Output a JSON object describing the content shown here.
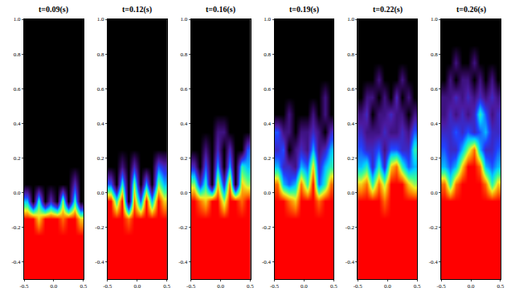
{
  "chart_data": [
    {
      "type": "heatmap",
      "title": "t=0.09(s)",
      "x": [
        -0.45,
        -0.35,
        -0.25,
        -0.15,
        -0.05,
        0.05,
        0.15,
        0.25,
        0.35,
        0.45
      ],
      "y": [
        -0.45,
        -0.35,
        -0.25,
        -0.15,
        -0.05,
        0.05,
        0.15,
        0.25,
        0.35,
        0.45,
        0.55,
        0.65,
        0.75,
        0.85,
        0.95
      ],
      "z": [
        [
          1,
          1,
          1,
          1,
          1,
          1,
          1,
          1,
          1,
          1
        ],
        [
          1,
          1,
          1,
          1,
          1,
          1,
          1,
          1,
          1,
          1
        ],
        [
          1,
          1,
          1,
          1,
          1,
          1,
          1,
          1,
          1,
          1
        ],
        [
          1,
          1,
          0.8,
          1,
          1,
          1,
          0.9,
          1,
          1,
          0.8
        ],
        [
          0.5,
          0,
          0.6,
          0,
          0.3,
          0,
          0.7,
          0,
          0.6,
          0
        ],
        [
          0,
          0,
          0,
          0,
          0,
          0,
          0,
          0,
          0.3,
          0
        ],
        [
          0,
          0,
          0,
          0,
          0,
          0,
          0,
          0,
          0,
          0
        ],
        [
          0,
          0,
          0,
          0,
          0,
          0,
          0,
          0,
          0,
          0
        ],
        [
          0,
          0,
          0,
          0,
          0,
          0,
          0,
          0,
          0,
          0
        ],
        [
          0,
          0,
          0,
          0,
          0,
          0,
          0,
          0,
          0,
          0
        ],
        [
          0,
          0,
          0,
          0,
          0,
          0,
          0,
          0,
          0,
          0
        ],
        [
          0,
          0,
          0,
          0,
          0,
          0,
          0,
          0,
          0,
          0
        ],
        [
          0,
          0,
          0,
          0,
          0,
          0,
          0,
          0,
          0,
          0
        ],
        [
          0,
          0,
          0,
          0,
          0,
          0,
          0,
          0,
          0,
          0
        ],
        [
          0,
          0,
          0,
          0,
          0,
          0,
          0,
          0,
          0,
          0
        ]
      ],
      "zlim": [
        0,
        1
      ],
      "xlim": [
        -0.5,
        0.5
      ],
      "ylim": [
        -0.5,
        1.0
      ],
      "xticks": [
        -0.5,
        {
          "value": 0,
          "label": "0.0"
        },
        0.5
      ],
      "yticks": [
        -0.4,
        -0.2,
        {
          "value": 0,
          "label": "0.0"
        },
        0.2,
        0.4,
        0.6,
        0.8,
        {
          "value": 1,
          "label": "1.0"
        }
      ]
    },
    {
      "type": "heatmap",
      "title": "t=0.12(s)",
      "x": [
        -0.45,
        -0.35,
        -0.25,
        -0.15,
        -0.05,
        0.05,
        0.15,
        0.25,
        0.35,
        0.45
      ],
      "y": [
        -0.45,
        -0.35,
        -0.25,
        -0.15,
        -0.05,
        0.05,
        0.15,
        0.25,
        0.35,
        0.45,
        0.55,
        0.65,
        0.75,
        0.85,
        0.95
      ],
      "z": [
        [
          1,
          1,
          1,
          1,
          1,
          1,
          1,
          1,
          1,
          1
        ],
        [
          1,
          1,
          1,
          1,
          1,
          1,
          1,
          1,
          1,
          1
        ],
        [
          1,
          1,
          1,
          1,
          1,
          1,
          1,
          1,
          1,
          1
        ],
        [
          1,
          1,
          1,
          0.9,
          1,
          1,
          1,
          1,
          1,
          1
        ],
        [
          1,
          0.6,
          1,
          0,
          0.9,
          0.4,
          1,
          0.5,
          1,
          0.8
        ],
        [
          0.4,
          0,
          0.6,
          0,
          0.7,
          0,
          0.5,
          0,
          0.7,
          0.5
        ],
        [
          0,
          0,
          0.2,
          0,
          0.3,
          0,
          0,
          0,
          0.4,
          0.3
        ],
        [
          0,
          0,
          0,
          0,
          0,
          0,
          0,
          0,
          0,
          0
        ],
        [
          0,
          0,
          0,
          0,
          0,
          0,
          0,
          0,
          0,
          0
        ],
        [
          0,
          0,
          0,
          0,
          0,
          0,
          0,
          0,
          0,
          0
        ],
        [
          0,
          0,
          0,
          0,
          0,
          0,
          0,
          0,
          0,
          0
        ],
        [
          0,
          0,
          0,
          0,
          0,
          0,
          0,
          0,
          0,
          0
        ],
        [
          0,
          0,
          0,
          0,
          0,
          0,
          0,
          0,
          0,
          0
        ],
        [
          0,
          0,
          0,
          0,
          0,
          0,
          0,
          0,
          0,
          0
        ],
        [
          0,
          0,
          0,
          0,
          0,
          0,
          0,
          0,
          0,
          0
        ]
      ],
      "zlim": [
        0,
        1
      ],
      "xlim": [
        -0.5,
        0.5
      ],
      "ylim": [
        -0.5,
        1.0
      ],
      "xticks": [
        -0.5,
        {
          "value": 0,
          "label": "0.0"
        },
        0.5
      ],
      "yticks": [
        -0.4,
        -0.2,
        {
          "value": 0,
          "label": "0.0"
        },
        0.2,
        0.4,
        0.6,
        0.8,
        {
          "value": 1,
          "label": "1.0"
        }
      ]
    },
    {
      "type": "heatmap",
      "title": "t=0.16(s)",
      "x": [
        -0.45,
        -0.35,
        -0.25,
        -0.15,
        -0.05,
        0.05,
        0.15,
        0.25,
        0.35,
        0.45
      ],
      "y": [
        -0.45,
        -0.35,
        -0.25,
        -0.15,
        -0.05,
        0.05,
        0.15,
        0.25,
        0.35,
        0.45,
        0.55,
        0.65,
        0.75,
        0.85,
        0.95
      ],
      "z": [
        [
          1,
          1,
          1,
          1,
          1,
          1,
          1,
          1,
          1,
          1
        ],
        [
          1,
          1,
          1,
          1,
          1,
          1,
          1,
          1,
          1,
          1
        ],
        [
          1,
          1,
          1,
          1,
          1,
          1,
          1,
          1,
          1,
          1
        ],
        [
          1,
          1,
          1,
          1,
          1,
          1,
          1,
          1,
          1,
          1
        ],
        [
          1,
          0.9,
          0.8,
          1,
          1,
          0.7,
          1,
          1,
          0.9,
          1
        ],
        [
          0.7,
          0.3,
          0.6,
          0,
          0.8,
          0.3,
          0.9,
          0,
          0.8,
          0.7
        ],
        [
          0.3,
          0,
          0.4,
          0,
          0.5,
          0,
          0.5,
          0,
          0.6,
          0.5
        ],
        [
          0,
          0,
          0.2,
          0,
          0.3,
          0,
          0.3,
          0,
          0,
          0.4
        ],
        [
          0,
          0,
          0,
          0,
          0.2,
          0.2,
          0,
          0,
          0,
          0
        ],
        [
          0,
          0,
          0,
          0,
          0,
          0,
          0,
          0,
          0,
          0
        ],
        [
          0,
          0,
          0,
          0,
          0,
          0,
          0,
          0,
          0,
          0
        ],
        [
          0,
          0,
          0,
          0,
          0,
          0,
          0,
          0,
          0,
          0
        ],
        [
          0,
          0,
          0,
          0,
          0,
          0,
          0,
          0,
          0,
          0
        ],
        [
          0,
          0,
          0,
          0,
          0,
          0,
          0,
          0,
          0,
          0
        ],
        [
          0,
          0,
          0,
          0,
          0,
          0,
          0,
          0,
          0,
          0
        ]
      ],
      "zlim": [
        0,
        1
      ],
      "xlim": [
        -0.5,
        0.5
      ],
      "ylim": [
        -0.5,
        1.0
      ],
      "xticks": [
        -0.5,
        {
          "value": 0,
          "label": "0.0"
        },
        0.5
      ],
      "yticks": [
        -0.4,
        -0.2,
        {
          "value": 0,
          "label": "0.0"
        },
        0.2,
        0.4,
        0.6,
        0.8,
        {
          "value": 1,
          "label": "1.0"
        }
      ]
    },
    {
      "type": "heatmap",
      "title": "t=0.19(s)",
      "x": [
        -0.45,
        -0.35,
        -0.25,
        -0.15,
        -0.05,
        0.05,
        0.15,
        0.25,
        0.35,
        0.45
      ],
      "y": [
        -0.45,
        -0.35,
        -0.25,
        -0.15,
        -0.05,
        0.05,
        0.15,
        0.25,
        0.35,
        0.45,
        0.55,
        0.65,
        0.75,
        0.85,
        0.95
      ],
      "z": [
        [
          1,
          1,
          1,
          1,
          1,
          1,
          1,
          1,
          1,
          1
        ],
        [
          1,
          1,
          1,
          1,
          1,
          1,
          1,
          1,
          1,
          1
        ],
        [
          1,
          1,
          1,
          1,
          1,
          1,
          1,
          1,
          1,
          1
        ],
        [
          1,
          1,
          1,
          1,
          1,
          1,
          1,
          1,
          1,
          1
        ],
        [
          1,
          1,
          0.9,
          0.8,
          1,
          1,
          1,
          0.9,
          1,
          1
        ],
        [
          0.9,
          0.5,
          0.4,
          0.5,
          0.9,
          0.6,
          1,
          0.4,
          0.6,
          0.9
        ],
        [
          0.5,
          0.3,
          0.3,
          0.2,
          0.5,
          0.4,
          0.8,
          0.3,
          0.5,
          0.6
        ],
        [
          0.3,
          0.4,
          0,
          0.2,
          0.3,
          0.2,
          0.5,
          0.2,
          0.3,
          0.5
        ],
        [
          0.4,
          0.2,
          0.2,
          0,
          0.2,
          0.2,
          0.3,
          0.2,
          0,
          0.3
        ],
        [
          0,
          0,
          0.2,
          0,
          0,
          0,
          0.2,
          0,
          0.2,
          0
        ],
        [
          0,
          0,
          0,
          0,
          0,
          0,
          0,
          0,
          0.2,
          0
        ],
        [
          0,
          0,
          0,
          0,
          0,
          0,
          0,
          0,
          0,
          0
        ],
        [
          0,
          0,
          0,
          0,
          0,
          0,
          0,
          0,
          0,
          0
        ],
        [
          0,
          0,
          0,
          0,
          0,
          0,
          0,
          0,
          0,
          0
        ],
        [
          0,
          0,
          0,
          0,
          0,
          0,
          0,
          0,
          0,
          0
        ]
      ],
      "zlim": [
        0,
        1
      ],
      "xlim": [
        -0.5,
        0.5
      ],
      "ylim": [
        -0.5,
        1.0
      ],
      "xticks": [
        -0.5,
        {
          "value": 0,
          "label": "0.0"
        },
        0.5
      ],
      "yticks": [
        -0.4,
        -0.2,
        {
          "value": 0,
          "label": "0.0"
        },
        0.2,
        0.4,
        0.6,
        0.8,
        {
          "value": 1,
          "label": "1.0"
        }
      ]
    },
    {
      "type": "heatmap",
      "title": "t=0.22(s)",
      "x": [
        -0.45,
        -0.35,
        -0.25,
        -0.15,
        -0.05,
        0.05,
        0.15,
        0.25,
        0.35,
        0.45
      ],
      "y": [
        -0.45,
        -0.35,
        -0.25,
        -0.15,
        -0.05,
        0.05,
        0.15,
        0.25,
        0.35,
        0.45,
        0.55,
        0.65,
        0.75,
        0.85,
        0.95
      ],
      "z": [
        [
          1,
          1,
          1,
          1,
          1,
          1,
          1,
          1,
          1,
          1
        ],
        [
          1,
          1,
          1,
          1,
          1,
          1,
          1,
          1,
          1,
          1
        ],
        [
          1,
          1,
          1,
          1,
          1,
          1,
          1,
          1,
          1,
          1
        ],
        [
          1,
          1,
          1,
          1,
          1,
          1,
          1,
          1,
          1,
          1
        ],
        [
          1,
          1,
          1,
          1,
          0.9,
          1,
          1,
          1,
          1,
          1
        ],
        [
          0.8,
          0.9,
          0.6,
          0.9,
          0.7,
          1,
          1,
          1,
          0.8,
          0.7
        ],
        [
          0.5,
          0.6,
          0.3,
          0.6,
          0.3,
          0.8,
          0.9,
          0.6,
          0.4,
          0.5
        ],
        [
          0.4,
          0.3,
          0.3,
          0.4,
          0.2,
          0.4,
          0.4,
          0.3,
          0.3,
          0.6
        ],
        [
          0.3,
          0.2,
          0.2,
          0.2,
          0.3,
          0.2,
          0.2,
          0.3,
          0.2,
          0.4
        ],
        [
          0.2,
          0.3,
          0,
          0.2,
          0.2,
          0.3,
          0.2,
          0.2,
          0,
          0.2
        ],
        [
          0,
          0.2,
          0.2,
          0,
          0.2,
          0,
          0.3,
          0,
          0.2,
          0
        ],
        [
          0,
          0,
          0,
          0.2,
          0,
          0,
          0,
          0.2,
          0,
          0
        ],
        [
          0,
          0,
          0,
          0,
          0,
          0,
          0,
          0,
          0,
          0
        ],
        [
          0,
          0,
          0,
          0,
          0,
          0,
          0,
          0,
          0,
          0
        ],
        [
          0,
          0,
          0,
          0,
          0,
          0,
          0,
          0,
          0,
          0
        ]
      ],
      "zlim": [
        0,
        1
      ],
      "xlim": [
        -0.5,
        0.5
      ],
      "ylim": [
        -0.5,
        1.0
      ],
      "xticks": [
        -0.5,
        {
          "value": 0,
          "label": "0.0"
        },
        0.5
      ],
      "yticks": [
        -0.4,
        -0.2,
        {
          "value": 0,
          "label": "0.0"
        },
        0.2,
        0.4,
        0.6,
        0.8,
        {
          "value": 1,
          "label": "1.0"
        }
      ]
    },
    {
      "type": "heatmap",
      "title": "t=0.26(s)",
      "x": [
        -0.45,
        -0.35,
        -0.25,
        -0.15,
        -0.05,
        0.05,
        0.15,
        0.25,
        0.35,
        0.45
      ],
      "y": [
        -0.45,
        -0.35,
        -0.25,
        -0.15,
        -0.05,
        0.05,
        0.15,
        0.25,
        0.35,
        0.45,
        0.55,
        0.65,
        0.75,
        0.85,
        0.95
      ],
      "z": [
        [
          1,
          1,
          1,
          1,
          1,
          1,
          1,
          1,
          1,
          1
        ],
        [
          1,
          1,
          1,
          1,
          1,
          1,
          1,
          1,
          1,
          1
        ],
        [
          1,
          1,
          1,
          1,
          1,
          1,
          1,
          1,
          1,
          1
        ],
        [
          1,
          1,
          1,
          1,
          1,
          1,
          1,
          1,
          1,
          1
        ],
        [
          1,
          1,
          1,
          1,
          1,
          1,
          1,
          1,
          1,
          1
        ],
        [
          0.9,
          0.6,
          0.9,
          1,
          1,
          1,
          1,
          0.9,
          0.6,
          0.8
        ],
        [
          0.5,
          0.4,
          0.5,
          0.8,
          1,
          1,
          0.9,
          0.5,
          0.4,
          0.5
        ],
        [
          0.4,
          0.3,
          0.3,
          0.5,
          0.7,
          0.9,
          0.5,
          0.3,
          0.3,
          0.4
        ],
        [
          0.3,
          0.3,
          0.4,
          0.3,
          0.4,
          0.3,
          0.4,
          0.5,
          0.3,
          0.3
        ],
        [
          0.2,
          0.3,
          0.2,
          0.3,
          0.2,
          0.3,
          0.6,
          0.4,
          0.2,
          0.3
        ],
        [
          0.2,
          0.2,
          0.3,
          0.2,
          0.3,
          0.2,
          0.3,
          0.2,
          0.3,
          0.2
        ],
        [
          0,
          0.2,
          0,
          0.2,
          0.2,
          0,
          0.2,
          0,
          0.2,
          0
        ],
        [
          0,
          0,
          0.2,
          0,
          0,
          0.2,
          0,
          0,
          0,
          0
        ],
        [
          0,
          0,
          0,
          0,
          0,
          0,
          0,
          0,
          0,
          0
        ],
        [
          0,
          0,
          0,
          0,
          0,
          0,
          0,
          0,
          0,
          0
        ]
      ],
      "zlim": [
        0,
        1
      ],
      "xlim": [
        -0.5,
        0.5
      ],
      "ylim": [
        -0.5,
        1.0
      ],
      "xticks": [
        -0.5,
        {
          "value": 0,
          "label": "0.0"
        },
        0.5
      ],
      "yticks": [
        -0.4,
        -0.2,
        {
          "value": 0,
          "label": "0.0"
        },
        0.2,
        0.4,
        0.6,
        0.8,
        {
          "value": 1,
          "label": "1.0"
        }
      ]
    }
  ]
}
